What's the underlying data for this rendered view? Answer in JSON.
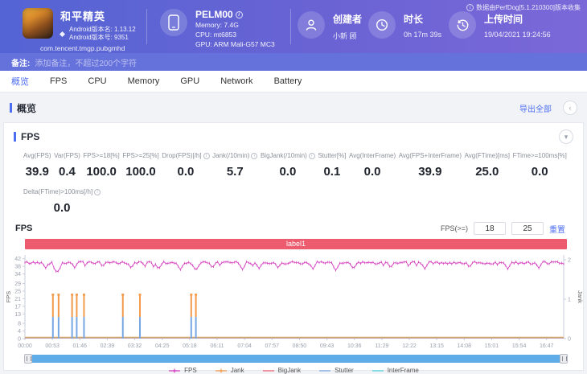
{
  "header": {
    "app": {
      "name": "和平精英",
      "version_name_label": "Android版本名: 1.13.12",
      "version_code_label": "Android版本号: 9351",
      "package": "com.tencent.tmgp.pubgmhd"
    },
    "device": {
      "model": "PELM00",
      "memory": "Memory: 7.4G",
      "cpu": "CPU: mt6853",
      "gpu": "GPU: ARM Mali-G57 MC3"
    },
    "creator": {
      "label": "创建者",
      "value": "小新 顾"
    },
    "duration": {
      "label": "时长",
      "value": "0h 17m 39s"
    },
    "upload": {
      "label": "上传时间",
      "value": "19/04/2021 19:24:56"
    },
    "source_note": "数据由PerfDog[5.1.210300]版本收集"
  },
  "note_bar": {
    "label": "备注:",
    "placeholder": "添加备注，不超过200个字符"
  },
  "tabs": [
    "概览",
    "FPS",
    "CPU",
    "Memory",
    "GPU",
    "Network",
    "Battery"
  ],
  "active_tab": "概览",
  "overview": {
    "title": "概览",
    "export_label": "导出全部"
  },
  "fps_panel": {
    "title": "FPS",
    "stats": [
      {
        "label": "Avg(FPS)",
        "value": "39.9",
        "info": false
      },
      {
        "label": "Var(FPS)",
        "value": "0.4",
        "info": false
      },
      {
        "label": "FPS>=18[%]",
        "value": "100.0",
        "info": false
      },
      {
        "label": "FPS>=25[%]",
        "value": "100.0",
        "info": false
      },
      {
        "label": "Drop(FPS)[/h]",
        "value": "0.0",
        "info": true
      },
      {
        "label": "Jank(/10min)",
        "value": "5.7",
        "info": true
      },
      {
        "label": "BigJank(/10min)",
        "value": "0.0",
        "info": true
      },
      {
        "label": "Stutter[%]",
        "value": "0.1",
        "info": false
      },
      {
        "label": "Avg(InterFrame)",
        "value": "0.0",
        "info": false
      },
      {
        "label": "Avg(FPS+InterFrame)",
        "value": "39.9",
        "info": false
      },
      {
        "label": "Avg(FTime)[ms]",
        "value": "25.0",
        "info": false
      },
      {
        "label": "FTime>=100ms[%]",
        "value": "0.0",
        "info": false
      }
    ],
    "stats_row2": [
      {
        "label": "Delta(FTime)>100ms[/h]",
        "value": "0.0",
        "info": true
      }
    ],
    "chart_title": "FPS",
    "threshold": {
      "label": "FPS(>=)",
      "low": "18",
      "high": "25",
      "reset_label": "重置"
    }
  },
  "chart_data": {
    "type": "line",
    "annotation_band": "label1",
    "ylabel_left": "FPS",
    "ylabel_right": "Jank",
    "y_left_ticks": [
      42,
      38,
      34,
      29,
      25,
      21,
      17,
      13,
      8,
      4,
      0
    ],
    "y_left_range": [
      0,
      44
    ],
    "y_right_ticks": [
      2,
      1,
      0
    ],
    "y_right_range": [
      0,
      2
    ],
    "x_ticks": [
      "00:00",
      "00:53",
      "01:46",
      "02:39",
      "03:32",
      "04:25",
      "05:18",
      "06:11",
      "07:04",
      "07:57",
      "08:50",
      "09:43",
      "10:36",
      "11:29",
      "12:22",
      "13:15",
      "14:08",
      "15:01",
      "15:54",
      "16:47"
    ],
    "x_tick_interval_s": 53,
    "x_range_seconds": [
      0,
      1040
    ],
    "fps_series": {
      "name": "FPS",
      "color": "#d53cbe",
      "baseline": 39.9,
      "noise": 0.7,
      "dips": [
        {
          "t": 40,
          "v": 37.0
        },
        {
          "t": 62,
          "v": 34.5
        },
        {
          "t": 96,
          "v": 37.2
        },
        {
          "t": 150,
          "v": 37.6
        },
        {
          "t": 205,
          "v": 36.9
        },
        {
          "t": 258,
          "v": 36.4
        },
        {
          "t": 300,
          "v": 36.2
        },
        {
          "t": 330,
          "v": 35.8
        },
        {
          "t": 362,
          "v": 37.0
        },
        {
          "t": 420,
          "v": 36.3
        },
        {
          "t": 452,
          "v": 36.8
        },
        {
          "t": 488,
          "v": 37.3
        },
        {
          "t": 556,
          "v": 36.6
        },
        {
          "t": 600,
          "v": 35.9
        },
        {
          "t": 634,
          "v": 36.5
        },
        {
          "t": 706,
          "v": 37.1
        },
        {
          "t": 772,
          "v": 36.7
        },
        {
          "t": 858,
          "v": 37.2
        },
        {
          "t": 932,
          "v": 36.6
        },
        {
          "t": 992,
          "v": 37.0
        }
      ]
    },
    "jank_events": [
      {
        "t": 54,
        "jank": 1,
        "stutter": 0.55
      },
      {
        "t": 65,
        "jank": 1,
        "stutter": 0.55
      },
      {
        "t": 91,
        "jank": 1,
        "stutter": 0.55
      },
      {
        "t": 100,
        "jank": 1,
        "stutter": 0.55
      },
      {
        "t": 114,
        "jank": 1,
        "stutter": 0.55
      },
      {
        "t": 189,
        "jank": 1,
        "stutter": 0.55
      },
      {
        "t": 222,
        "jank": 1,
        "stutter": 0.55
      },
      {
        "t": 321,
        "jank": 1,
        "stutter": 0.55
      },
      {
        "t": 330,
        "jank": 1,
        "stutter": 0.55
      }
    ],
    "zero_lines": [
      {
        "name": "BigJank",
        "color": "#ee5b6e",
        "value": 0
      },
      {
        "name": "InterFrame",
        "color": "#46d3da",
        "value": 0
      },
      {
        "name": "Jank-baseline",
        "color": "#f29a4a",
        "value": 0
      }
    ],
    "legend": [
      {
        "label": "FPS",
        "color": "#d53cbe",
        "marker": "plus-line"
      },
      {
        "label": "Jank",
        "color": "#f29a4a",
        "marker": "plus-line"
      },
      {
        "label": "BigJank",
        "color": "#ee5b6e",
        "marker": "line"
      },
      {
        "label": "Stutter",
        "color": "#76a6e3",
        "marker": "line"
      },
      {
        "label": "InterFrame",
        "color": "#46d3da",
        "marker": "line"
      }
    ],
    "bar_colors": {
      "jank": "#f29a4a",
      "stutter": "#76a6e3"
    }
  }
}
